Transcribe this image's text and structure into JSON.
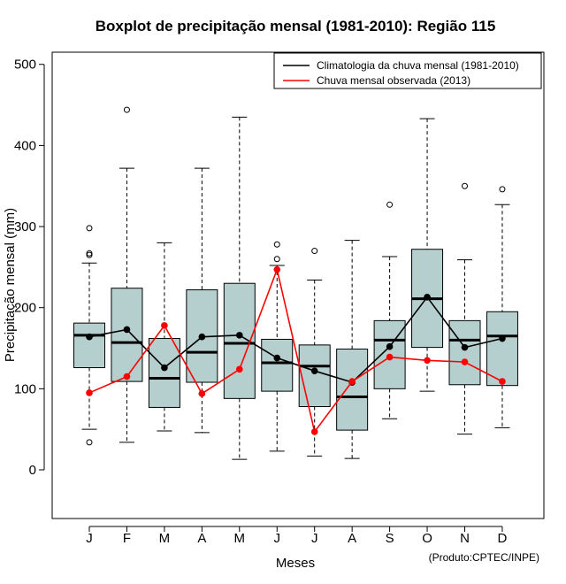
{
  "chart_data": {
    "type": "boxplot",
    "title": "Boxplot de precipitação mensal (1981-2010): Região 115",
    "xlabel": "Meses",
    "ylabel": "Precipitação mensal (mm)",
    "ylim": [
      -60,
      515
    ],
    "yticks": [
      0,
      100,
      200,
      300,
      400,
      500
    ],
    "categories": [
      "J",
      "F",
      "M",
      "A",
      "M",
      "J",
      "J",
      "A",
      "S",
      "O",
      "N",
      "D"
    ],
    "boxes": [
      {
        "whisker_low": 50,
        "q1": 126,
        "median": 166,
        "q3": 181,
        "whisker_high": 255,
        "outliers": [
          34,
          265,
          267,
          298
        ]
      },
      {
        "whisker_low": 34,
        "q1": 109,
        "median": 157,
        "q3": 224,
        "whisker_high": 372,
        "outliers": [
          444
        ]
      },
      {
        "whisker_low": 48,
        "q1": 77,
        "median": 113,
        "q3": 162,
        "whisker_high": 280,
        "outliers": []
      },
      {
        "whisker_low": 46,
        "q1": 108,
        "median": 145,
        "q3": 222,
        "whisker_high": 372,
        "outliers": []
      },
      {
        "whisker_low": 13,
        "q1": 88,
        "median": 156,
        "q3": 230,
        "whisker_high": 435,
        "outliers": []
      },
      {
        "whisker_low": 23,
        "q1": 97,
        "median": 132,
        "q3": 161,
        "whisker_high": 252,
        "outliers": [
          260,
          278
        ]
      },
      {
        "whisker_low": 17,
        "q1": 78,
        "median": 128,
        "q3": 154,
        "whisker_high": 234,
        "outliers": [
          270
        ]
      },
      {
        "whisker_low": 14,
        "q1": 49,
        "median": 90,
        "q3": 149,
        "whisker_high": 283,
        "outliers": []
      },
      {
        "whisker_low": 63,
        "q1": 100,
        "median": 160,
        "q3": 184,
        "whisker_high": 263,
        "outliers": [
          327
        ]
      },
      {
        "whisker_low": 97,
        "q1": 151,
        "median": 211,
        "q3": 272,
        "whisker_high": 433,
        "outliers": []
      },
      {
        "whisker_low": 44,
        "q1": 105,
        "median": 160,
        "q3": 184,
        "whisker_high": 259,
        "outliers": [
          350
        ]
      },
      {
        "whisker_low": 52,
        "q1": 104,
        "median": 165,
        "q3": 195,
        "whisker_high": 327,
        "outliers": [
          346
        ]
      }
    ],
    "series": [
      {
        "name": "Climatologia da chuva mensal (1981-2010)",
        "color": "#000000",
        "values": [
          164,
          173,
          126,
          164,
          166,
          138,
          122,
          108,
          152,
          213,
          151,
          162
        ]
      },
      {
        "name": "Chuva mensal observada (2013)",
        "color": "#ff0000",
        "values": [
          95,
          115,
          178,
          94,
          124,
          247,
          47,
          109,
          139,
          135,
          133,
          109
        ]
      }
    ],
    "legend_position": "top-right",
    "box_fill": "#b5cece",
    "credit": "(Produto:CPTEC/INPE)"
  }
}
